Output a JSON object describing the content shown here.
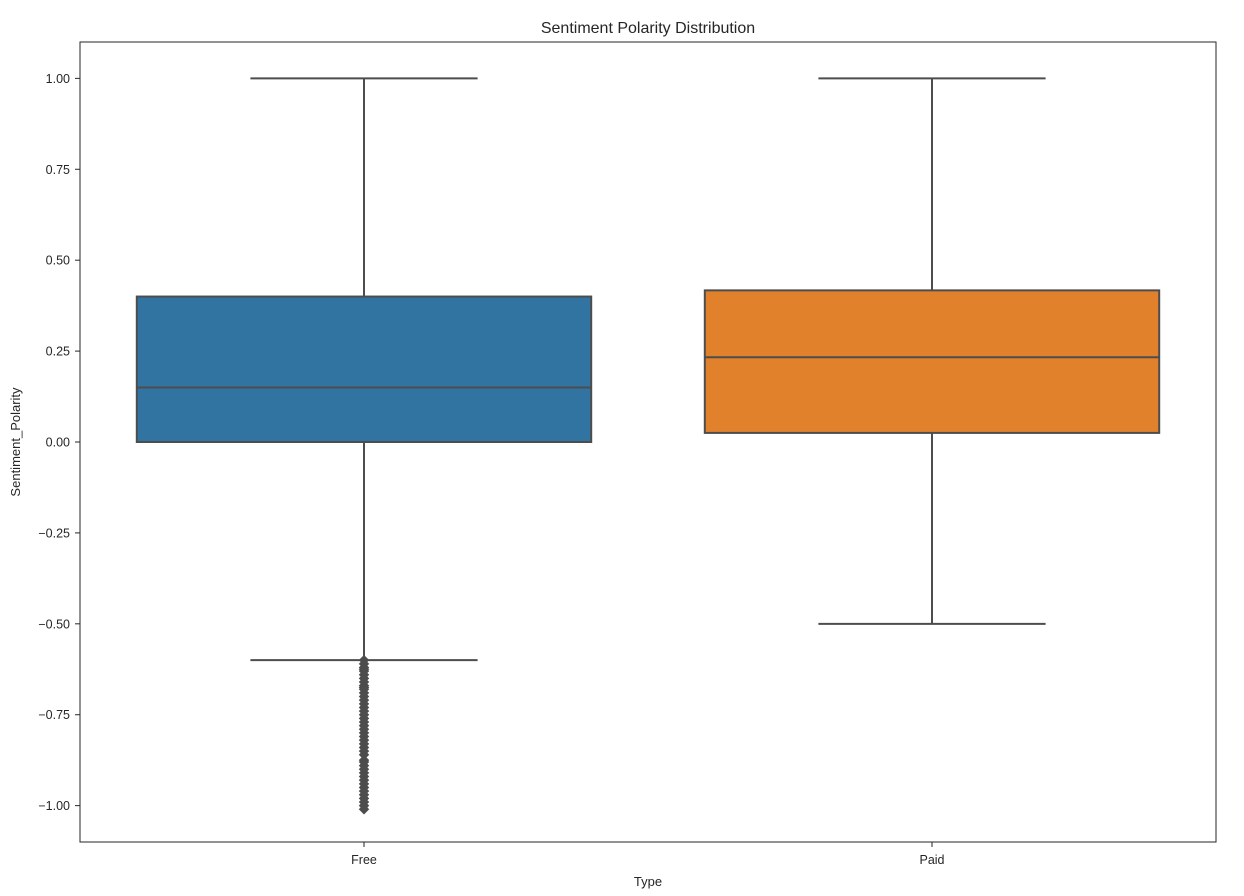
{
  "chart_data": {
    "type": "box",
    "title": "Sentiment Polarity Distribution",
    "xlabel": "Type",
    "ylabel": "Sentiment_Polarity",
    "ylim": [
      -1.1,
      1.1
    ],
    "yticks": [
      1.0,
      0.75,
      0.5,
      0.25,
      0.0,
      -0.25,
      -0.5,
      -0.75,
      -1.0
    ],
    "ytick_labels": [
      "1.00",
      "0.75",
      "0.50",
      "0.25",
      "0.00",
      "−0.25",
      "−0.50",
      "−0.75",
      "−1.00"
    ],
    "categories": [
      "Free",
      "Paid"
    ],
    "grid": false,
    "series": [
      {
        "category": "Free",
        "color": "#3274a1",
        "whisker_low": -0.6,
        "q1": 0.0,
        "median": 0.15,
        "q3": 0.4,
        "whisker_high": 1.0,
        "outliers": [
          -0.6,
          -0.61,
          -0.62,
          -0.625,
          -0.63,
          -0.64,
          -0.65,
          -0.66,
          -0.67,
          -0.675,
          -0.68,
          -0.69,
          -0.7,
          -0.71,
          -0.72,
          -0.73,
          -0.74,
          -0.75,
          -0.76,
          -0.77,
          -0.78,
          -0.79,
          -0.8,
          -0.81,
          -0.82,
          -0.83,
          -0.84,
          -0.85,
          -0.86,
          -0.875,
          -0.88,
          -0.89,
          -0.9,
          -0.91,
          -0.92,
          -0.93,
          -0.94,
          -0.95,
          -0.96,
          -0.97,
          -0.98,
          -0.99,
          -1.0,
          -1.01
        ]
      },
      {
        "category": "Paid",
        "color": "#e1812c",
        "whisker_low": -0.5,
        "q1": 0.025,
        "median": 0.233,
        "q3": 0.417,
        "whisker_high": 1.0,
        "outliers": []
      }
    ]
  }
}
